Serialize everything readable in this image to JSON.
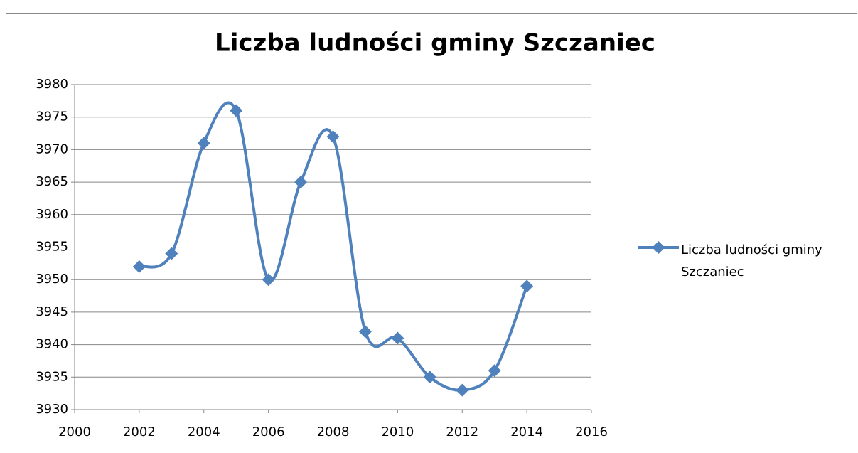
{
  "chart_data": {
    "type": "line",
    "title": "Liczba ludności gminy Szczaniec",
    "x": [
      2002,
      2003,
      2004,
      2005,
      2006,
      2007,
      2008,
      2009,
      2010,
      2011,
      2012,
      2013,
      2014
    ],
    "series": [
      {
        "name": "Liczba ludności gminy Szczaniec",
        "color": "#4f81bd",
        "values": [
          3952,
          3954,
          3971,
          3976,
          3950,
          3965,
          3972,
          3942,
          3941,
          3935,
          3933,
          3936,
          3949
        ]
      }
    ],
    "xlim": [
      2000,
      2016
    ],
    "xticks": [
      2000,
      2002,
      2004,
      2006,
      2008,
      2010,
      2012,
      2014,
      2016
    ],
    "ylim": [
      3930,
      3980
    ],
    "yticks": [
      3930,
      3935,
      3940,
      3945,
      3950,
      3955,
      3960,
      3965,
      3970,
      3975,
      3980
    ],
    "grid": true,
    "smooth": true,
    "legend": "right"
  }
}
